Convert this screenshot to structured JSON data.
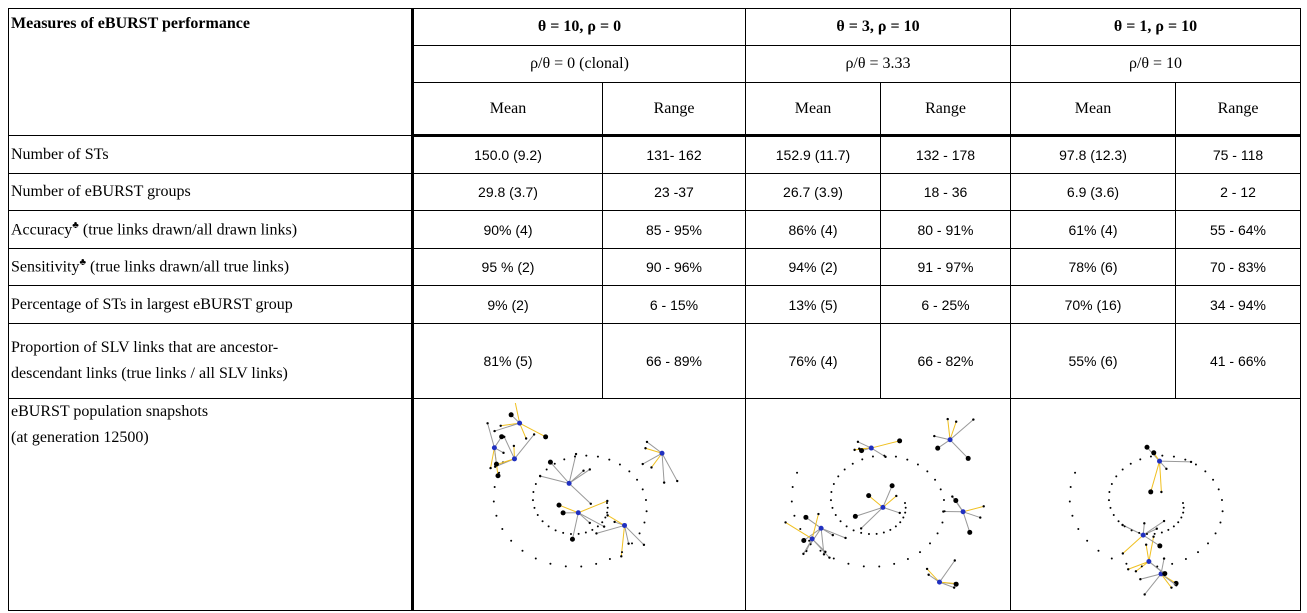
{
  "header": {
    "title": "Measures of eBURST performance",
    "groups": [
      {
        "params": "θ  = 10, ρ = 0",
        "ratio": "ρ/θ = 0 (clonal)"
      },
      {
        "params": "θ  = 3, ρ = 10",
        "ratio": "ρ/θ = 3.33"
      },
      {
        "params": "θ  = 1, ρ = 10",
        "ratio": "ρ/θ = 10"
      }
    ],
    "columns": [
      "Mean",
      "Range",
      "Mean",
      "Range",
      "Mean",
      "Range"
    ]
  },
  "rows": [
    {
      "label": "Number of STs",
      "cells": [
        "150.0 (9.2)",
        "131- 162",
        "152.9 (11.7)",
        "132 - 178",
        "97.8 (12.3)",
        "75 - 118"
      ]
    },
    {
      "label": "Number of eBURST groups",
      "cells": [
        "29.8 (3.7)",
        "23 -37",
        "26.7 (3.9)",
        "18 - 36",
        "6.9 (3.6)",
        "2 - 12"
      ]
    },
    {
      "label": "Accuracy",
      "sup": "♣",
      "after": "(true links drawn/all drawn links)",
      "cells": [
        "90% (4)",
        "85 - 95%",
        "86% (4)",
        "80 - 91%",
        "61% (4)",
        "55 - 64%"
      ]
    },
    {
      "label": "Sensitivity",
      "sup": "♣",
      "after": "(true links drawn/all true links)",
      "cells": [
        "95 % (2)",
        "90 - 96%",
        "94% (2)",
        "91 - 97%",
        "78% (6)",
        "70 - 83%"
      ]
    },
    {
      "label": "Percentage of STs in largest eBURST group",
      "cells": [
        "9% (2)",
        "6 - 15%",
        "13% (5)",
        "6 - 25%",
        "70% (16)",
        "34 - 94%"
      ]
    },
    {
      "label": "Proportion of SLV links that are ancestor-",
      "label2": "descendant links (true links / all SLV links)",
      "cells": [
        "81% (5)",
        "66 - 89%",
        "76% (4)",
        "66 - 82%",
        "55% (6)",
        "41 - 66%"
      ]
    },
    {
      "label": "eBURST population snapshots",
      "label2": "(at generation 12500)"
    }
  ]
}
